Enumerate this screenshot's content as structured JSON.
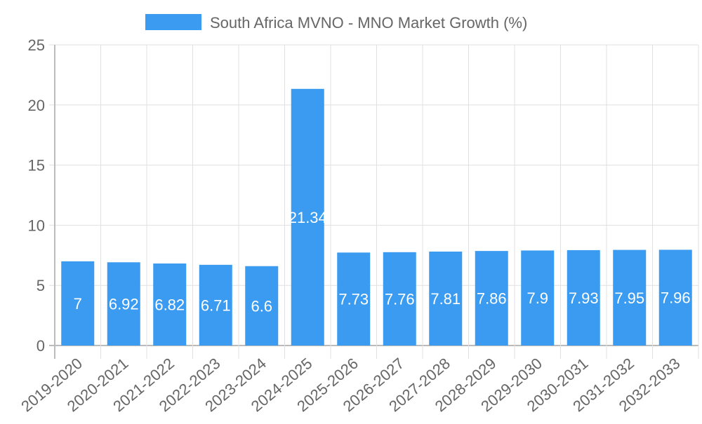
{
  "chart_data": {
    "type": "bar",
    "title": "",
    "legend": {
      "label": "South Africa MVNO - MNO Market Growth (%)",
      "position": "top"
    },
    "categories": [
      "2019-2020",
      "2020-2021",
      "2021-2022",
      "2022-2023",
      "2023-2024",
      "2024-2025",
      "2025-2026",
      "2026-2027",
      "2027-2028",
      "2028-2029",
      "2029-2030",
      "2030-2031",
      "2031-2032",
      "2032-2033"
    ],
    "values": [
      7,
      6.92,
      6.82,
      6.71,
      6.6,
      21.34,
      7.73,
      7.76,
      7.81,
      7.86,
      7.9,
      7.93,
      7.95,
      7.96
    ],
    "data_labels": [
      "7",
      "6.92",
      "6.82",
      "6.71",
      "6.6",
      "21.34",
      "7.73",
      "7.76",
      "7.81",
      "7.86",
      "7.9",
      "7.93",
      "7.95",
      "7.96"
    ],
    "yticks": [
      "0",
      "5",
      "10",
      "15",
      "20",
      "25"
    ],
    "ylim": [
      0,
      25
    ],
    "xlabel": "",
    "ylabel": "",
    "grid": true,
    "colors": {
      "bar": "#3a9bf0",
      "grid": "#e0e0e0",
      "axis": "#bbbbbb",
      "text": "#666666",
      "label": "#ffffff"
    }
  }
}
